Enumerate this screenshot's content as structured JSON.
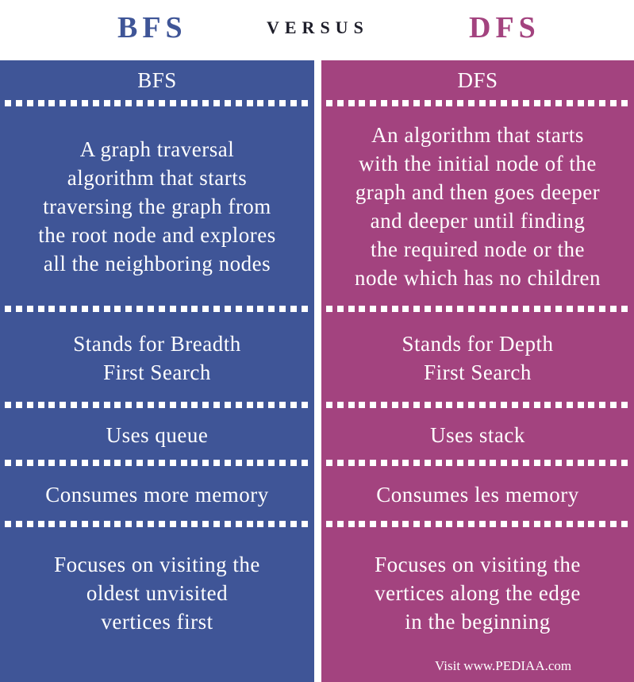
{
  "header": {
    "left_title": "BFS",
    "versus": "VERSUS",
    "right_title": "DFS"
  },
  "left": {
    "heading": "BFS",
    "rows": [
      [
        "A graph traversal",
        "algorithm that starts",
        "traversing the graph from",
        "the root node and explores",
        "all the neighboring nodes"
      ],
      [
        "Stands for Breadth",
        "First Search"
      ],
      [
        "Uses queue"
      ],
      [
        "Consumes more memory"
      ],
      [
        "Focuses on visiting the",
        "oldest unvisited",
        "vertices first"
      ]
    ]
  },
  "right": {
    "heading": "DFS",
    "rows": [
      [
        "An algorithm that starts",
        "with the initial node of the",
        "graph and then goes deeper",
        "and deeper until finding",
        "the required node or the",
        "node which has no children"
      ],
      [
        "Stands for Depth",
        "First Search"
      ],
      [
        "Uses stack"
      ],
      [
        "Consumes les memory"
      ],
      [
        "Focuses on visiting the",
        "vertices along the edge",
        "in the beginning"
      ]
    ]
  },
  "footer": "Visit www.PEDIAA.com",
  "colors": {
    "bfs": "#3f5597",
    "dfs": "#a3437f",
    "versus": "#1e1e2a",
    "text": "#ffffff"
  }
}
